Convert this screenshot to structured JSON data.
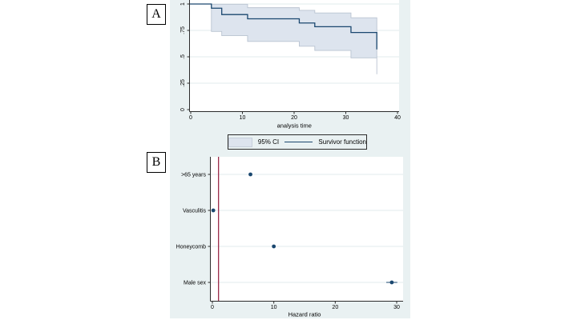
{
  "page": {
    "background": "#ffffff"
  },
  "figure": {
    "background": "#e9f1f2",
    "plot_background": "#ffffff",
    "grid_color": "#e2ebed",
    "axis_color": "#2b2b2b",
    "text_color": "#000000"
  },
  "chart_data": [
    {
      "type": "area",
      "name": "kaplan-meier-survival-curve",
      "panel_label": "A",
      "title": "",
      "xlabel": "analysis time",
      "ylabel": "",
      "xlim": [
        0,
        40
      ],
      "ylim": [
        0,
        1
      ],
      "xticks": [
        0,
        10,
        20,
        30,
        40
      ],
      "yticks": [
        {
          "v": 0,
          "label": "0"
        },
        {
          "v": 0.25,
          "label": ".25"
        },
        {
          "v": 0.5,
          "label": ".5"
        },
        {
          "v": 0.75,
          "label": ".75"
        },
        {
          "v": 1,
          "label": "1"
        }
      ],
      "grid": "horizontal",
      "legend_position": "bottom-center",
      "series": [
        {
          "name": "Survivor function",
          "type": "step-line",
          "color": "#1a476f",
          "points": [
            [
              0,
              1
            ],
            [
              4,
              0.96
            ],
            [
              6,
              0.9
            ],
            [
              11,
              0.86
            ],
            [
              21,
              0.82
            ],
            [
              24,
              0.785
            ],
            [
              31,
              0.73
            ],
            [
              36,
              0.57
            ]
          ]
        },
        {
          "name": "95% CI",
          "type": "step-band",
          "fill": "#dde4ee",
          "edge": "#b9c3d1",
          "upper": [
            [
              4,
              0.998
            ],
            [
              11,
              0.965
            ],
            [
              21,
              0.94
            ],
            [
              24,
              0.915
            ],
            [
              31,
              0.87
            ]
          ],
          "lower": [
            [
              4,
              0.74
            ],
            [
              6,
              0.7
            ],
            [
              11,
              0.645
            ],
            [
              21,
              0.6
            ],
            [
              24,
              0.56
            ],
            [
              31,
              0.49
            ]
          ],
          "end_time": 36,
          "end_lower_value": 0.335
        }
      ],
      "legend": [
        {
          "swatch": "area",
          "label": "95% CI"
        },
        {
          "swatch": "line",
          "label": "Survivor function"
        }
      ]
    },
    {
      "type": "scatter",
      "name": "hazard-ratio-dot-plot",
      "panel_label": "B",
      "title": "",
      "xlabel": "Hazard ratio",
      "ylabel": "",
      "xlim": [
        0,
        30
      ],
      "xticks": [
        0,
        10,
        20,
        30
      ],
      "categories": [
        ">65 years",
        "Vasculitis",
        "Honeycomb",
        "Male sex"
      ],
      "values": [
        6.2,
        0.15,
        10,
        29.2
      ],
      "ci": [
        null,
        null,
        null,
        [
          28.3,
          30.1
        ]
      ],
      "ref_line": {
        "x": 1,
        "color": "#9a2b4a"
      },
      "marker_color": "#1a476f",
      "grid": "horizontal"
    }
  ]
}
